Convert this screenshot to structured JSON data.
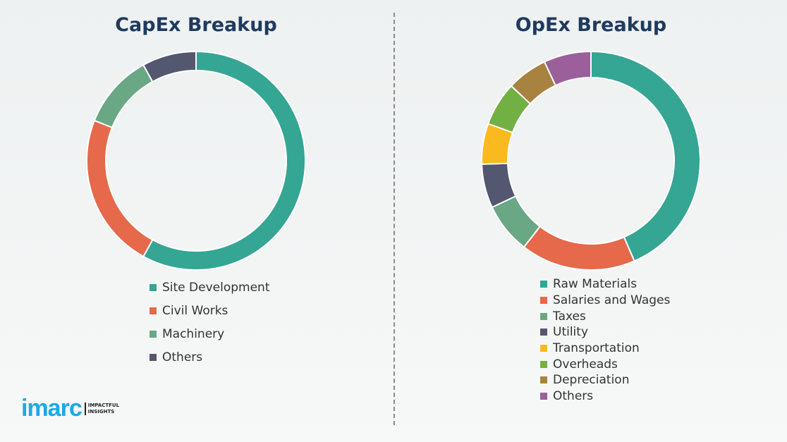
{
  "chart_data": [
    {
      "type": "pie",
      "donut": true,
      "title": "CapEx Breakup",
      "categories": [
        "Site Development",
        "Civil Works",
        "Machinery",
        "Others"
      ],
      "values": [
        58,
        23,
        11,
        8
      ],
      "colors": [
        "#35a594",
        "#e5694a",
        "#6aa784",
        "#545770"
      ],
      "legend": "bottom",
      "unit": "%"
    },
    {
      "type": "pie",
      "donut": true,
      "title": "OpEx Breakup",
      "categories": [
        "Raw Materials",
        "Salaries and Wages",
        "Taxes",
        "Utility",
        "Transportation",
        "Overheads",
        "Depreciation",
        "Others"
      ],
      "values": [
        43.5,
        17,
        7.5,
        6.5,
        6,
        6.5,
        6,
        7
      ],
      "colors": [
        "#35a594",
        "#e5694a",
        "#6aa784",
        "#545770",
        "#fbb920",
        "#72b043",
        "#a8823f",
        "#9b5f9b"
      ],
      "legend": "bottom",
      "unit": "%"
    }
  ],
  "logo": {
    "text": "imarc",
    "tagline": "IMPACTFUL\nINSIGHTS"
  }
}
